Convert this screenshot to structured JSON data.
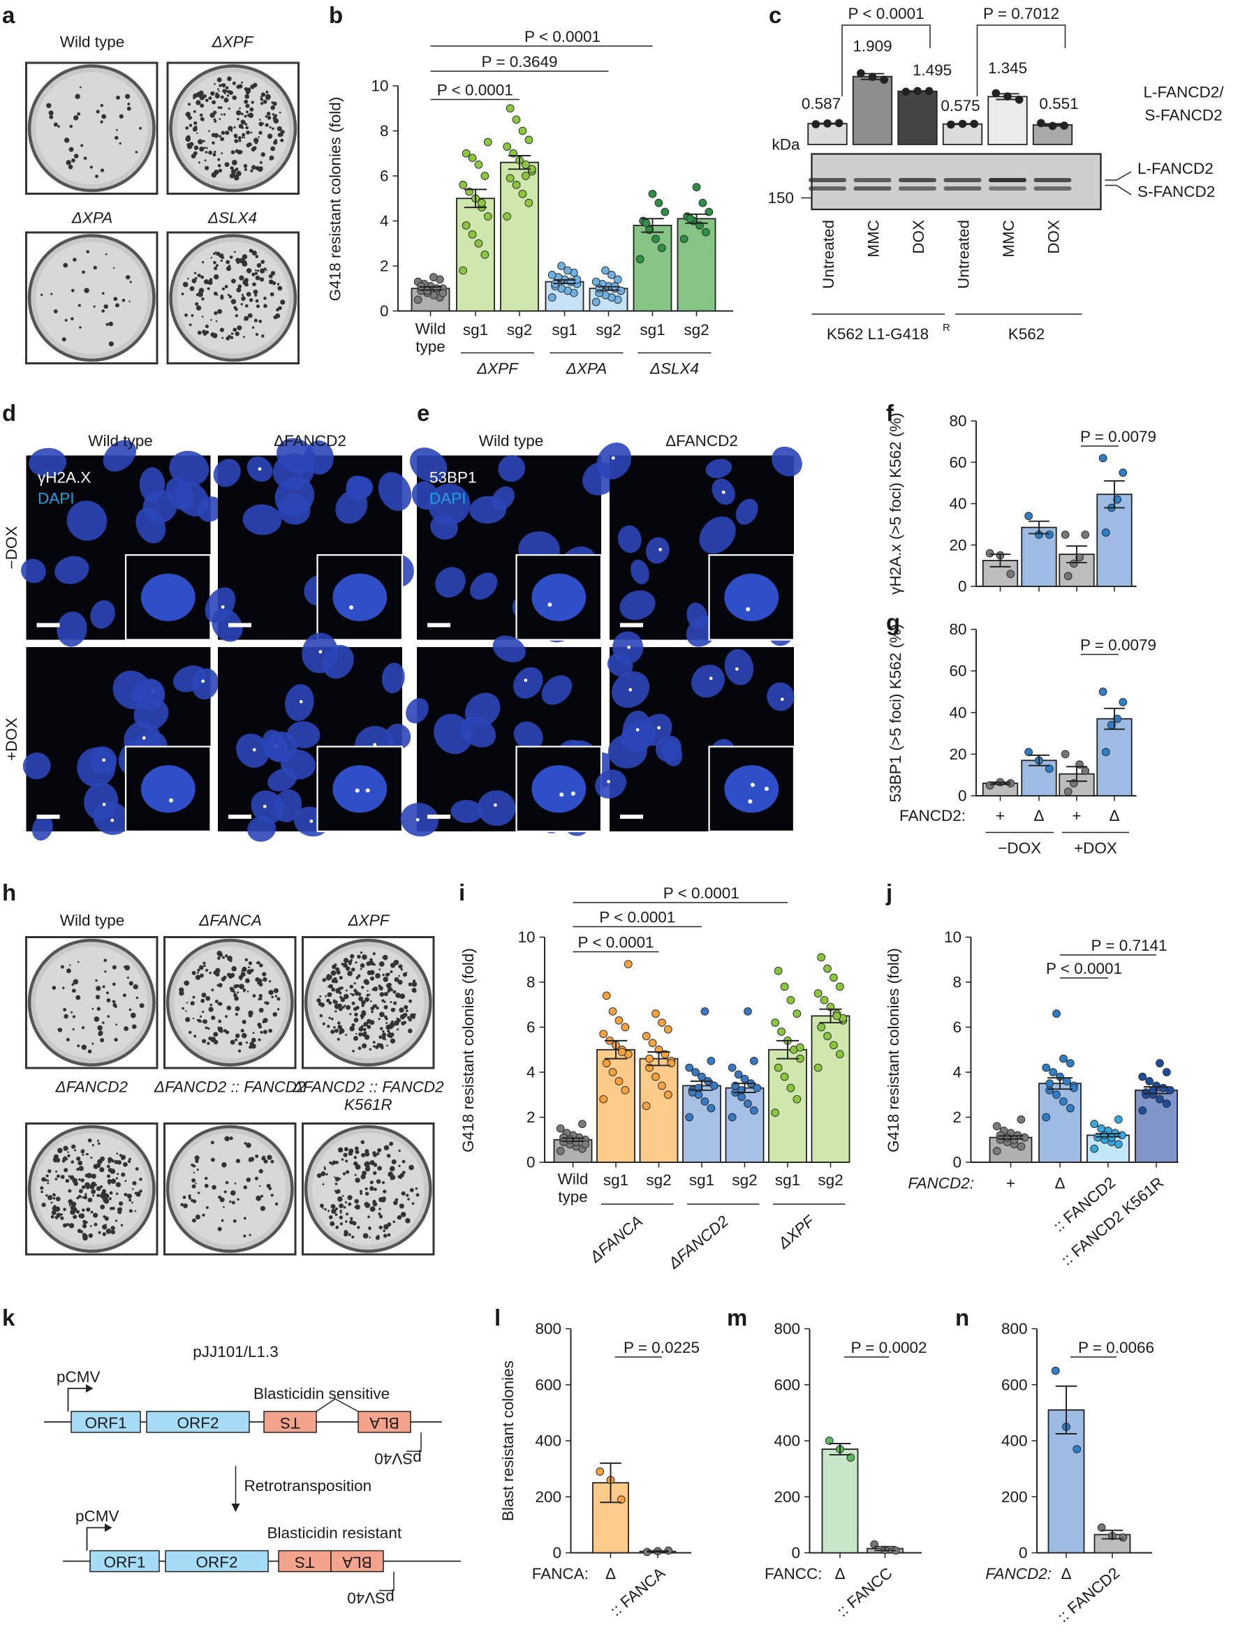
{
  "panel_labels": [
    "a",
    "b",
    "c",
    "d",
    "e",
    "f",
    "g",
    "h",
    "i",
    "j",
    "k",
    "l",
    "m",
    "n"
  ],
  "panel_a": {
    "plates": [
      "Wild type",
      "ΔXPF",
      "ΔXPA",
      "ΔSLX4"
    ]
  },
  "panel_h": {
    "plates": [
      "Wild type",
      "ΔFANCA",
      "ΔXPF",
      "ΔFANCD2",
      "ΔFANCD2 :: FANCD2",
      "ΔFANCD2 :: FANCD2 K561R"
    ]
  },
  "panel_d": {
    "columns": [
      "Wild type",
      "ΔFANCD2"
    ],
    "rows": [
      "−DOX",
      "+DOX"
    ],
    "stain1": "γH2A.X",
    "stain2": "DAPI"
  },
  "panel_e": {
    "columns": [
      "Wild type",
      "ΔFANCD2"
    ],
    "stain1": "53BP1",
    "stain2": "DAPI"
  },
  "panel_c_blot": {
    "unit": "kDa",
    "marker": "150",
    "band_labels": [
      "L-FANCD2",
      "S-FANCD2"
    ],
    "ratio_label": [
      "L-FANCD2/",
      "S-FANCD2"
    ]
  },
  "panel_k": {
    "title": "pJJ101/L1.3",
    "promoter": "pCMV",
    "orf1": "ORF1",
    "orf2": "ORF2",
    "ts": "TS",
    "bla": "BLA",
    "psv40": "pSV40",
    "sensitive": "Blasticidin sensitive",
    "step": "Retrotransposition",
    "resistant": "Blasticidin resistant",
    "colors": {
      "orf": "#a6dcf5",
      "marker": "#f4a48c"
    }
  },
  "chart_data": [
    {
      "id": "b",
      "type": "bar",
      "ylabel": "G418 resistant colonies (fold)",
      "ylim": [
        0,
        10
      ],
      "yticks": [
        "0",
        "2",
        "4",
        "6",
        "8",
        "10"
      ],
      "categories": [
        "Wild type",
        "sg1",
        "sg2",
        "sg1",
        "sg2",
        "sg1",
        "sg2"
      ],
      "groups": [
        {
          "text": "ΔXPF",
          "from": 1,
          "to": 2
        },
        {
          "text": "ΔXPA",
          "from": 3,
          "to": 4
        },
        {
          "text": "ΔSLX4",
          "from": 5,
          "to": 6
        }
      ],
      "annotations": [
        {
          "text": "P < 0.0001",
          "from": 0,
          "to": 5
        },
        {
          "text": "P = 0.3649",
          "from": 0,
          "to": 4
        },
        {
          "text": "P < 0.0001",
          "from": 0,
          "to": 2
        }
      ],
      "bars": [
        {
          "mean": 1.0,
          "sem": 0.07,
          "fill": "#b0b0b0",
          "dot": "#7a7a7a",
          "points": [
            0.5,
            0.6,
            0.7,
            0.8,
            0.9,
            1.0,
            1.0,
            1.1,
            1.2,
            1.3,
            1.4,
            1.5,
            0.9,
            1.1,
            0.8,
            1.0
          ]
        },
        {
          "mean": 5.0,
          "sem": 0.4,
          "fill": "#cfe6ad",
          "dot": "#8cc63f",
          "points": [
            1.8,
            2.5,
            3.0,
            3.4,
            3.8,
            4.2,
            4.6,
            5.0,
            5.3,
            5.6,
            6.0,
            6.5,
            6.8,
            7.0,
            7.5,
            4.8
          ]
        },
        {
          "mean": 6.6,
          "sem": 0.3,
          "fill": "#cfe6ad",
          "dot": "#8cc63f",
          "points": [
            4.2,
            4.8,
            5.2,
            5.6,
            5.9,
            6.2,
            6.5,
            6.7,
            7.0,
            7.3,
            7.6,
            8.0,
            8.5,
            9.0,
            6.3,
            6.0
          ]
        },
        {
          "mean": 1.3,
          "sem": 0.08,
          "fill": "#c8e2f5",
          "dot": "#6fb0e0",
          "points": [
            0.6,
            0.8,
            0.9,
            1.0,
            1.1,
            1.2,
            1.3,
            1.4,
            1.5,
            1.6,
            1.7,
            1.8,
            2.0,
            1.2,
            1.4,
            1.3
          ]
        },
        {
          "mean": 1.0,
          "sem": 0.08,
          "fill": "#c8e2f5",
          "dot": "#6fb0e0",
          "points": [
            0.4,
            0.5,
            0.6,
            0.7,
            0.8,
            0.9,
            1.0,
            1.1,
            1.2,
            1.3,
            1.4,
            1.6,
            1.8,
            1.0,
            0.9,
            1.1
          ]
        },
        {
          "mean": 3.8,
          "sem": 0.3,
          "fill": "#86c586",
          "dot": "#2f8f46",
          "points": [
            2.3,
            2.8,
            3.2,
            3.6,
            4.0,
            4.4,
            4.8,
            5.2,
            3.9
          ]
        },
        {
          "mean": 4.1,
          "sem": 0.2,
          "fill": "#86c586",
          "dot": "#2f8f46",
          "points": [
            3.2,
            3.5,
            3.8,
            4.0,
            4.2,
            4.4,
            4.8,
            5.5,
            4.1
          ]
        }
      ]
    },
    {
      "id": "c",
      "type": "bar",
      "ylabel": "L-FANCD2/S-FANCD2",
      "categories": [
        "Untreated",
        "MMC",
        "DOX",
        "Untreated",
        "MMC",
        "DOX"
      ],
      "groups": [
        {
          "text": "K562 L1-G418",
          "sup": "R",
          "from": 0,
          "to": 2
        },
        {
          "text": "K562",
          "from": 3,
          "to": 5
        }
      ],
      "annotations": [
        {
          "text": "P < 0.0001",
          "from": 0,
          "to": 2
        },
        {
          "text": "P = 0.7012",
          "from": 3,
          "to": 5
        }
      ],
      "value_labels": [
        "0.587",
        "1.909",
        "1.495",
        "0.575",
        "1.345",
        "0.551"
      ],
      "bars": [
        {
          "mean": 0.587,
          "sem": 0.01,
          "fill": "#dcdcdc",
          "dot": "#222",
          "points": [
            0.57,
            0.59,
            0.6
          ]
        },
        {
          "mean": 1.909,
          "sem": 0.08,
          "fill": "#8e8e8e",
          "dot": "#222",
          "points": [
            2.0,
            1.9,
            1.82
          ]
        },
        {
          "mean": 1.495,
          "sem": 0.01,
          "fill": "#444444",
          "dot": "#222",
          "points": [
            1.48,
            1.5,
            1.5
          ]
        },
        {
          "mean": 0.575,
          "sem": 0.01,
          "fill": "#dcdcdc",
          "dot": "#222",
          "points": [
            0.56,
            0.58,
            0.58
          ]
        },
        {
          "mean": 1.345,
          "sem": 0.08,
          "fill": "#ececec",
          "dot": "#222",
          "points": [
            1.44,
            1.35,
            1.26
          ]
        },
        {
          "mean": 0.551,
          "sem": 0.03,
          "fill": "#a9a9a9",
          "dot": "#222",
          "points": [
            0.6,
            0.52,
            0.53
          ]
        }
      ]
    },
    {
      "id": "f",
      "type": "bar",
      "ylabel": "γH2A.x (>5 foci) K562 (%)",
      "ylim": [
        0,
        80
      ],
      "yticks": [
        "0",
        "20",
        "40",
        "60",
        "80"
      ],
      "categories": [],
      "annotations": [
        {
          "text": "P = 0.0079",
          "from": 2,
          "to": 3
        }
      ],
      "bars": [
        {
          "mean": 12.5,
          "sem": 3,
          "fill": "#bdbdbd",
          "dot": "#777",
          "points": [
            16,
            15,
            6
          ]
        },
        {
          "mean": 28.5,
          "sem": 3,
          "fill": "#9dbbe3",
          "dot": "#2f7fc8",
          "points": [
            34,
            25,
            25
          ]
        },
        {
          "mean": 15.5,
          "sem": 4,
          "fill": "#bdbdbd",
          "dot": "#777",
          "points": [
            25,
            25,
            14,
            11,
            5
          ]
        },
        {
          "mean": 44.5,
          "sem": 6.5,
          "fill": "#9dbbe3",
          "dot": "#2f7fc8",
          "points": [
            62,
            55,
            42,
            38,
            26
          ]
        }
      ]
    },
    {
      "id": "g",
      "type": "bar",
      "ylabel": "53BP1 (>5 foci) K562 (%)",
      "ylim": [
        0,
        80
      ],
      "yticks": [
        "0",
        "20",
        "40",
        "60",
        "80"
      ],
      "prefix": "FANCD2:",
      "categories": [
        "+",
        "Δ",
        "+",
        "Δ"
      ],
      "groups": [
        {
          "text": "−DOX",
          "from": 0,
          "to": 1
        },
        {
          "text": "+DOX",
          "from": 2,
          "to": 3
        }
      ],
      "annotations": [
        {
          "text": "P = 0.0079",
          "from": 2,
          "to": 3
        }
      ],
      "bars": [
        {
          "mean": 6,
          "sem": 0.5,
          "fill": "#bdbdbd",
          "dot": "#777",
          "points": [
            5,
            6.5,
            6
          ]
        },
        {
          "mean": 17,
          "sem": 2.5,
          "fill": "#9dbbe3",
          "dot": "#2f7fc8",
          "points": [
            21,
            17,
            13
          ]
        },
        {
          "mean": 10.5,
          "sem": 3.5,
          "fill": "#bdbdbd",
          "dot": "#777",
          "points": [
            20,
            12,
            15,
            6,
            2
          ]
        },
        {
          "mean": 37,
          "sem": 5,
          "fill": "#9dbbe3",
          "dot": "#2f7fc8",
          "points": [
            50,
            45,
            37,
            34,
            21
          ]
        }
      ]
    },
    {
      "id": "i",
      "type": "bar",
      "ylabel": "G418 resistant colonies (fold)",
      "ylim": [
        0,
        10
      ],
      "yticks": [
        "0",
        "2",
        "4",
        "6",
        "8",
        "10"
      ],
      "categories": [
        "Wild type",
        "sg1",
        "sg2",
        "sg1",
        "sg2",
        "sg1",
        "sg2"
      ],
      "groups": [
        {
          "text": "ΔFANCA",
          "from": 1,
          "to": 2
        },
        {
          "text": "ΔFANCD2",
          "from": 3,
          "to": 4
        },
        {
          "text": "ΔXPF",
          "from": 5,
          "to": 6
        }
      ],
      "annotations": [
        {
          "text": "P < 0.0001",
          "from": 0,
          "to": 5
        },
        {
          "text": "P < 0.0001",
          "from": 0,
          "to": 3
        },
        {
          "text": "P < 0.0001",
          "from": 0,
          "to": 2
        }
      ],
      "bars": [
        {
          "mean": 1.0,
          "sem": 0.07,
          "fill": "#b0b0b0",
          "dot": "#7a7a7a",
          "points": [
            0.5,
            0.6,
            0.7,
            0.8,
            0.9,
            1.0,
            1.1,
            1.2,
            1.3,
            1.5,
            1.7,
            0.9,
            1.0,
            1.1,
            0.8
          ]
        },
        {
          "mean": 5.0,
          "sem": 0.4,
          "fill": "#fccb8a",
          "dot": "#f4a23d",
          "points": [
            2.8,
            3.2,
            3.6,
            4.0,
            4.4,
            4.8,
            5.0,
            5.2,
            5.4,
            5.7,
            6.0,
            6.3,
            6.7,
            7.4,
            8.8,
            4.9
          ]
        },
        {
          "mean": 4.6,
          "sem": 0.3,
          "fill": "#fccb8a",
          "dot": "#f4a23d",
          "points": [
            2.5,
            3.0,
            3.4,
            3.8,
            4.2,
            4.5,
            4.8,
            5.0,
            5.3,
            5.6,
            5.9,
            6.2,
            6.6,
            4.6,
            4.4
          ]
        },
        {
          "mean": 3.4,
          "sem": 0.2,
          "fill": "#a6c0e6",
          "dot": "#3a78c2",
          "points": [
            2.0,
            2.4,
            2.7,
            3.0,
            3.2,
            3.4,
            3.6,
            3.8,
            4.0,
            4.2,
            4.5,
            6.7,
            3.3,
            3.1
          ]
        },
        {
          "mean": 3.3,
          "sem": 0.2,
          "fill": "#a6c0e6",
          "dot": "#3a78c2",
          "points": [
            2.0,
            2.3,
            2.6,
            2.9,
            3.1,
            3.3,
            3.5,
            3.7,
            3.9,
            4.2,
            4.5,
            6.7,
            3.2,
            3.4
          ]
        },
        {
          "mean": 5.0,
          "sem": 0.4,
          "fill": "#cfe6ad",
          "dot": "#8cc63f",
          "points": [
            2.2,
            2.8,
            3.3,
            3.8,
            4.2,
            4.6,
            5.0,
            5.4,
            5.8,
            6.2,
            6.6,
            7.2,
            7.8,
            8.5,
            5.1
          ]
        },
        {
          "mean": 6.5,
          "sem": 0.3,
          "fill": "#cfe6ad",
          "dot": "#8cc63f",
          "points": [
            4.2,
            4.8,
            5.2,
            5.6,
            6.0,
            6.3,
            6.6,
            6.9,
            7.2,
            7.5,
            7.8,
            8.2,
            8.6,
            9.1,
            6.4,
            6.5
          ]
        }
      ]
    },
    {
      "id": "j",
      "type": "bar",
      "ylabel": "G418 resistant colonies (fold)",
      "ylim": [
        0,
        10
      ],
      "yticks": [
        "0",
        "2",
        "4",
        "6",
        "8",
        "10"
      ],
      "prefix": "FANCD2:",
      "categories": [
        "+",
        "Δ",
        ":: FANCD2",
        ":: FANCD2 K561R"
      ],
      "annotations": [
        {
          "text": "P = 0.7141",
          "from": 1,
          "to": 3
        },
        {
          "text": "P < 0.0001",
          "from": 1,
          "to": 2
        }
      ],
      "bars": [
        {
          "mean": 1.1,
          "sem": 0.07,
          "fill": "#b0b0b0",
          "dot": "#7a7a7a",
          "points": [
            0.5,
            0.7,
            0.8,
            0.9,
            1.0,
            1.1,
            1.2,
            1.3,
            1.4,
            1.6,
            1.9,
            1.0,
            1.1,
            1.2
          ]
        },
        {
          "mean": 3.5,
          "sem": 0.25,
          "fill": "#9dbbe3",
          "dot": "#2f7fc8",
          "points": [
            2.0,
            2.4,
            2.7,
            3.0,
            3.2,
            3.4,
            3.6,
            3.8,
            4.0,
            4.2,
            4.4,
            4.6,
            6.6,
            3.5,
            3.3
          ]
        },
        {
          "mean": 1.2,
          "sem": 0.07,
          "fill": "#c3e6f8",
          "dot": "#34a8e0",
          "points": [
            0.6,
            0.8,
            0.9,
            1.0,
            1.1,
            1.2,
            1.3,
            1.4,
            1.5,
            1.7,
            1.9,
            1.1,
            1.2
          ]
        },
        {
          "mean": 3.2,
          "sem": 0.15,
          "fill": "#8096cb",
          "dot": "#1d4d9b",
          "points": [
            2.3,
            2.6,
            2.8,
            3.0,
            3.1,
            3.2,
            3.3,
            3.4,
            3.6,
            3.8,
            4.0,
            4.4,
            3.2,
            3.0
          ]
        }
      ]
    },
    {
      "id": "l",
      "type": "bar",
      "ylabel": "Blast resistant colonies",
      "ylim": [
        0,
        800
      ],
      "yticks": [
        "0",
        "200",
        "400",
        "600",
        "800"
      ],
      "prefix": "FANCA:",
      "categories": [
        "Δ",
        ":: FANCA"
      ],
      "annotations": [
        {
          "text": "P = 0.0225",
          "from": 0,
          "to": 1
        }
      ],
      "bars": [
        {
          "mean": 250,
          "sem": 70,
          "fill": "#fccb8a",
          "dot": "#f4a23d",
          "points": [
            290,
            260,
            190
          ]
        },
        {
          "mean": 5,
          "sem": 2,
          "fill": "#bdbdbd",
          "dot": "#777",
          "points": [
            3,
            6,
            8
          ]
        }
      ]
    },
    {
      "id": "m",
      "type": "bar",
      "ylim": [
        0,
        800
      ],
      "yticks": [
        "0",
        "200",
        "400",
        "600",
        "800"
      ],
      "prefix": "FANCC:",
      "categories": [
        "Δ",
        ":: FANCC"
      ],
      "annotations": [
        {
          "text": "P = 0.0002",
          "from": 0,
          "to": 1
        }
      ],
      "bars": [
        {
          "mean": 370,
          "sem": 20,
          "fill": "#c8e6c8",
          "dot": "#5cb85c",
          "points": [
            400,
            370,
            340
          ]
        },
        {
          "mean": 15,
          "sem": 7,
          "fill": "#bdbdbd",
          "dot": "#777",
          "points": [
            30,
            10,
            8
          ]
        }
      ]
    },
    {
      "id": "n",
      "type": "bar",
      "ylim": [
        0,
        800
      ],
      "yticks": [
        "0",
        "200",
        "400",
        "600",
        "800"
      ],
      "prefix": "FANCD2:",
      "categories": [
        "Δ",
        ":: FANCD2"
      ],
      "annotations": [
        {
          "text": "P = 0.0066",
          "from": 0,
          "to": 1
        }
      ],
      "bars": [
        {
          "mean": 510,
          "sem": 85,
          "fill": "#9dbbe3",
          "dot": "#2f7fc8",
          "points": [
            650,
            450,
            370
          ]
        },
        {
          "mean": 65,
          "sem": 15,
          "fill": "#bdbdbd",
          "dot": "#777",
          "points": [
            90,
            60,
            55
          ]
        }
      ]
    }
  ]
}
